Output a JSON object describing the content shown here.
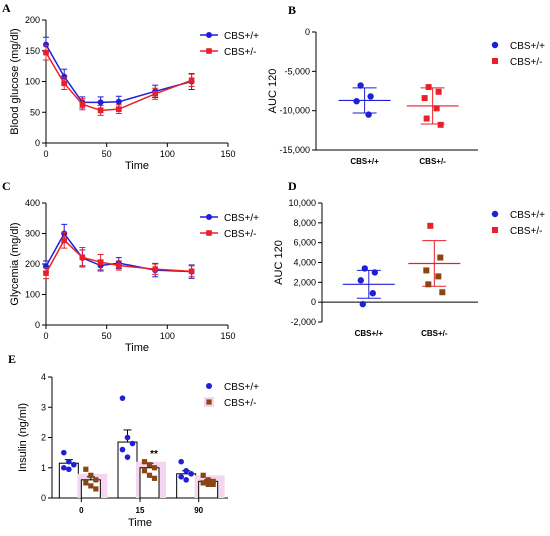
{
  "colors": {
    "wt": "#1f1fd6",
    "het": "#e8202a",
    "het_dot": "#8b4513",
    "het_bar_bg": "#f6d6ee"
  },
  "chart_data": [
    {
      "panel": "A",
      "type": "line",
      "ylabel": "Blood glucose (mg/dl)",
      "xlabel": "Time",
      "xlim": [
        0,
        150
      ],
      "ylim": [
        0,
        200
      ],
      "xticks": [
        "0",
        "50",
        "100",
        "150"
      ],
      "yticks": [
        "0",
        "50",
        "100",
        "150",
        "200"
      ],
      "legend": [
        "CBS+/+",
        "CBS+/-"
      ],
      "series": [
        {
          "name": "CBS+/+",
          "x": [
            0,
            15,
            30,
            45,
            60,
            90,
            120
          ],
          "y": [
            160,
            108,
            66,
            66,
            67,
            84,
            100
          ],
          "err": [
            12,
            12,
            9,
            9,
            9,
            10,
            13
          ]
        },
        {
          "name": "CBS+/-",
          "x": [
            0,
            15,
            30,
            45,
            60,
            90,
            120
          ],
          "y": [
            147,
            97,
            63,
            53,
            55,
            80,
            102
          ],
          "err": [
            12,
            10,
            9,
            8,
            7,
            9,
            10
          ]
        }
      ]
    },
    {
      "panel": "B",
      "type": "scatter",
      "ylabel": "AUC 120",
      "categories": [
        "CBS+/+",
        "CBS+/-"
      ],
      "ylim": [
        -15000,
        0
      ],
      "yticks": [
        "0",
        "-5,000",
        "-10,000",
        "-15,000"
      ],
      "legend": [
        "CBS+/+",
        "CBS+/-"
      ],
      "groups": [
        {
          "name": "CBS+/+",
          "points": [
            -6800,
            -8200,
            -8800,
            -10500
          ],
          "mean": -8700,
          "sd": 1600
        },
        {
          "name": "CBS+/-",
          "points": [
            -7000,
            -7600,
            -8400,
            -9700,
            -11000,
            -11800
          ],
          "mean": -9400,
          "sd": 2300
        }
      ]
    },
    {
      "panel": "C",
      "type": "line",
      "ylabel": "Glycemia (mg/dl)",
      "xlabel": "Time",
      "xlim": [
        0,
        150
      ],
      "ylim": [
        0,
        400
      ],
      "xticks": [
        "0",
        "50",
        "100",
        "150"
      ],
      "yticks": [
        "0",
        "100",
        "200",
        "300",
        "400"
      ],
      "legend": [
        "CBS+/+",
        "CBS+/-"
      ],
      "series": [
        {
          "name": "CBS+/+",
          "x": [
            0,
            15,
            30,
            45,
            60,
            90,
            120
          ],
          "y": [
            192,
            300,
            220,
            195,
            203,
            180,
            175
          ],
          "err": [
            18,
            30,
            26,
            18,
            18,
            22,
            22
          ]
        },
        {
          "name": "CBS+/-",
          "x": [
            0,
            15,
            30,
            45,
            60,
            90,
            120
          ],
          "y": [
            170,
            278,
            222,
            206,
            195,
            183,
            176
          ],
          "err": [
            18,
            26,
            32,
            25,
            15,
            17,
            18
          ]
        }
      ]
    },
    {
      "panel": "D",
      "type": "scatter",
      "ylabel": "AUC 120",
      "categories": [
        "CBS+/+",
        "CBS+/-"
      ],
      "ylim": [
        -2000,
        10000
      ],
      "yticks": [
        "10,000",
        "8,000",
        "6,000",
        "4,000",
        "2,000",
        "0",
        "-2,000"
      ],
      "legend": [
        "CBS+/+",
        "CBS+/-"
      ],
      "groups": [
        {
          "name": "CBS+/+",
          "points": [
            3400,
            3000,
            2200,
            900,
            -200
          ],
          "mean": 1800,
          "sd": 1400
        },
        {
          "name": "CBS+/-",
          "points": [
            7700,
            4500,
            3200,
            2600,
            1800,
            1000
          ],
          "mean": 3900,
          "sd": 2300
        }
      ]
    },
    {
      "panel": "E",
      "type": "bar",
      "ylabel": "Insulin (ng/ml)",
      "xlabel": "Time",
      "categories": [
        "0",
        "15",
        "90"
      ],
      "ylim": [
        0,
        4
      ],
      "yticks": [
        "0",
        "1",
        "2",
        "3",
        "4"
      ],
      "legend": [
        "CBS+/+",
        "CBS+/-"
      ],
      "annotation": "**",
      "series": [
        {
          "name": "CBS+/+",
          "values": [
            1.15,
            1.85,
            0.8
          ],
          "err": [
            0.12,
            0.4,
            0.1
          ],
          "points": [
            [
              1.5,
              1.2,
              1.1,
              1.0,
              0.95
            ],
            [
              3.3,
              2.0,
              1.8,
              1.6,
              1.35
            ],
            [
              1.2,
              0.9,
              0.8,
              0.7,
              0.6
            ]
          ]
        },
        {
          "name": "CBS+/-",
          "values": [
            0.6,
            1.0,
            0.55
          ],
          "err": [
            0.1,
            0.15,
            0.05
          ],
          "points": [
            [
              0.95,
              0.75,
              0.6,
              0.5,
              0.4,
              0.3
            ],
            [
              1.2,
              1.1,
              1.0,
              0.9,
              0.75,
              0.65
            ],
            [
              0.75,
              0.6,
              0.55,
              0.5,
              0.45,
              0.45
            ]
          ]
        }
      ]
    }
  ]
}
